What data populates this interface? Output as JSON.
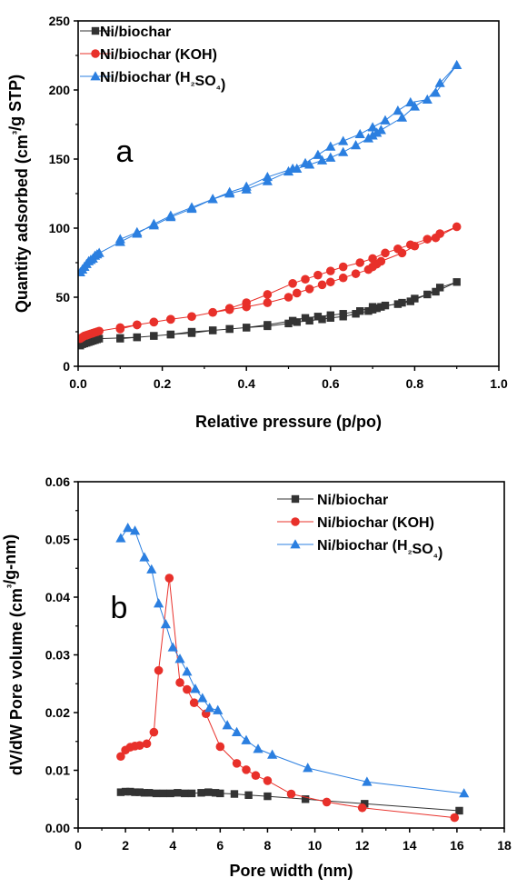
{
  "chart_data": [
    {
      "type": "line",
      "panel_label": "a",
      "xlabel": "Relative pressure (p/po)",
      "ylabel": "Quantity adsorbed (cm³/g STP)",
      "xlim": [
        0,
        1.0
      ],
      "ylim": [
        0,
        250
      ],
      "xticks": [
        "0.0",
        "0.2",
        "0.4",
        "0.6",
        "0.8",
        "1.0"
      ],
      "yticks": [
        "0",
        "50",
        "100",
        "150",
        "200",
        "250"
      ],
      "legend_position": "top-left",
      "series": [
        {
          "name": "Ni/biochar",
          "color": "#333333",
          "marker": "square",
          "x": [
            0.005,
            0.01,
            0.015,
            0.02,
            0.025,
            0.03,
            0.035,
            0.04,
            0.045,
            0.05,
            0.1,
            0.14,
            0.18,
            0.22,
            0.27,
            0.32,
            0.36,
            0.4,
            0.45,
            0.5,
            0.52,
            0.55,
            0.58,
            0.6,
            0.63,
            0.66,
            0.69,
            0.7,
            0.71,
            0.72,
            0.77,
            0.8,
            0.85,
            0.9,
            0.86,
            0.83,
            0.79,
            0.76,
            0.73,
            0.7,
            0.67,
            0.63,
            0.6,
            0.57,
            0.54,
            0.51,
            0.45,
            0.4,
            0.36,
            0.32,
            0.27,
            0.22,
            0.18,
            0.14,
            0.1
          ],
          "y": [
            15,
            16,
            16.5,
            17,
            17.5,
            18,
            18.5,
            19,
            19.5,
            20,
            20.5,
            21,
            22,
            23,
            24,
            26,
            27,
            28,
            29,
            31,
            32,
            33,
            34,
            35,
            36,
            38,
            40,
            41,
            42,
            43,
            46,
            49,
            54,
            61,
            57,
            52,
            47,
            45,
            44,
            43,
            40,
            38,
            37,
            36,
            35,
            33,
            30,
            28,
            27,
            26,
            25,
            23,
            22,
            21,
            20
          ]
        },
        {
          "name": "Ni/biochar (KOH)",
          "color": "#e8302a",
          "marker": "circle",
          "x": [
            0.005,
            0.01,
            0.015,
            0.02,
            0.025,
            0.03,
            0.035,
            0.04,
            0.045,
            0.05,
            0.1,
            0.14,
            0.18,
            0.22,
            0.27,
            0.32,
            0.36,
            0.4,
            0.45,
            0.5,
            0.52,
            0.55,
            0.58,
            0.6,
            0.63,
            0.66,
            0.69,
            0.7,
            0.71,
            0.72,
            0.77,
            0.8,
            0.85,
            0.9,
            0.86,
            0.83,
            0.79,
            0.76,
            0.73,
            0.7,
            0.67,
            0.63,
            0.6,
            0.57,
            0.54,
            0.51,
            0.45,
            0.4,
            0.36,
            0.32,
            0.27,
            0.22,
            0.18,
            0.14,
            0.1
          ],
          "y": [
            20,
            21,
            22,
            22.5,
            23,
            23.5,
            24,
            24.5,
            25,
            25.5,
            28,
            30,
            32,
            34,
            36,
            39,
            41,
            43,
            46,
            50,
            53,
            56,
            59,
            61,
            64,
            67,
            70,
            72,
            74,
            76,
            82,
            87,
            93,
            101,
            96,
            92,
            88,
            85,
            82,
            78,
            75,
            72,
            69,
            66,
            63,
            60,
            52,
            46,
            42,
            39,
            36,
            34,
            32,
            30,
            27
          ]
        },
        {
          "name": "Ni/biochar (H₂SO₄)",
          "color": "#2b7fe0",
          "marker": "triangle",
          "x": [
            0.005,
            0.01,
            0.015,
            0.02,
            0.025,
            0.03,
            0.035,
            0.04,
            0.045,
            0.05,
            0.1,
            0.14,
            0.18,
            0.22,
            0.27,
            0.32,
            0.36,
            0.4,
            0.45,
            0.5,
            0.52,
            0.55,
            0.58,
            0.6,
            0.63,
            0.66,
            0.69,
            0.7,
            0.71,
            0.72,
            0.77,
            0.8,
            0.85,
            0.9,
            0.86,
            0.83,
            0.79,
            0.76,
            0.73,
            0.7,
            0.67,
            0.63,
            0.6,
            0.57,
            0.54,
            0.51,
            0.45,
            0.4,
            0.36,
            0.32,
            0.27,
            0.22,
            0.18,
            0.14,
            0.1
          ],
          "y": [
            68,
            70,
            72,
            74,
            76,
            77,
            78,
            80,
            81,
            82,
            90,
            96,
            103,
            109,
            115,
            121,
            125,
            128,
            134,
            141,
            143,
            146,
            149,
            151,
            155,
            160,
            165,
            167,
            169,
            171,
            180,
            188,
            198,
            218,
            205,
            193,
            191,
            185,
            178,
            173,
            168,
            163,
            159,
            153,
            147,
            143,
            137,
            130,
            126,
            121,
            114,
            108,
            102,
            97,
            92
          ]
        }
      ]
    },
    {
      "type": "line",
      "panel_label": "b",
      "xlabel": "Pore width (nm)",
      "ylabel": "dV/dW Pore volume (cm³/g-nm)",
      "xlim": [
        0,
        18
      ],
      "ylim": [
        0,
        0.06
      ],
      "xticks": [
        "0",
        "2",
        "4",
        "6",
        "8",
        "10",
        "12",
        "14",
        "16",
        "18"
      ],
      "yticks": [
        "0.00",
        "0.01",
        "0.02",
        "0.03",
        "0.04",
        "0.05",
        "0.06"
      ],
      "legend_position": "top-right",
      "series": [
        {
          "name": "Ni/biochar",
          "color": "#333333",
          "marker": "square",
          "x": [
            1.8,
            2.0,
            2.2,
            2.4,
            2.6,
            2.8,
            3.0,
            3.3,
            3.6,
            3.9,
            4.2,
            4.5,
            4.8,
            5.2,
            5.5,
            5.8,
            6.0,
            6.6,
            7.2,
            8.0,
            9.6,
            12.1,
            16.1
          ],
          "y": [
            0.0062,
            0.0063,
            0.0063,
            0.0062,
            0.0062,
            0.0061,
            0.0061,
            0.006,
            0.006,
            0.006,
            0.0061,
            0.006,
            0.006,
            0.0061,
            0.0062,
            0.0061,
            0.006,
            0.0059,
            0.0057,
            0.0055,
            0.005,
            0.0042,
            0.003
          ]
        },
        {
          "name": "Ni/biochar (KOH)",
          "color": "#e8302a",
          "marker": "circle",
          "x": [
            1.8,
            2.0,
            2.2,
            2.4,
            2.6,
            2.9,
            3.2,
            3.4,
            3.85,
            4.3,
            4.6,
            4.9,
            5.4,
            6.0,
            6.7,
            7.1,
            7.5,
            8.0,
            9.0,
            10.5,
            12.0,
            15.9
          ],
          "y": [
            0.0124,
            0.0135,
            0.014,
            0.0142,
            0.0143,
            0.0146,
            0.0166,
            0.0273,
            0.0433,
            0.0252,
            0.024,
            0.0217,
            0.0198,
            0.0141,
            0.0112,
            0.0101,
            0.0091,
            0.0082,
            0.0059,
            0.0045,
            0.0035,
            0.0018
          ]
        },
        {
          "name": "Ni/biochar (H₂SO₄)",
          "color": "#2b7fe0",
          "marker": "triangle",
          "x": [
            1.8,
            2.1,
            2.4,
            2.8,
            3.1,
            3.4,
            3.7,
            4.0,
            4.3,
            4.6,
            4.95,
            5.25,
            5.55,
            5.9,
            6.3,
            6.7,
            7.1,
            7.6,
            8.2,
            9.7,
            12.2,
            16.3
          ],
          "y": [
            0.0502,
            0.052,
            0.0515,
            0.0469,
            0.0448,
            0.0389,
            0.0353,
            0.0313,
            0.0293,
            0.0271,
            0.0241,
            0.0225,
            0.0208,
            0.0204,
            0.0178,
            0.0166,
            0.0152,
            0.0137,
            0.0127,
            0.0104,
            0.008,
            0.006
          ]
        }
      ]
    }
  ]
}
